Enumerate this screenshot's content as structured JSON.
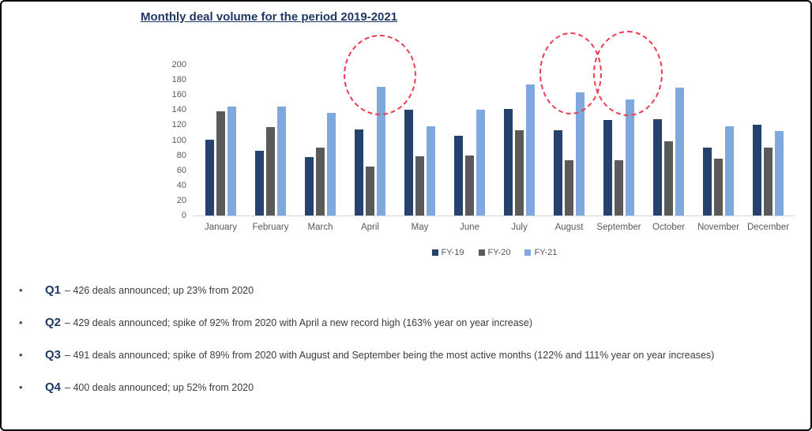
{
  "title": "Monthly deal volume for the period 2019-2021",
  "chart_data": {
    "type": "bar",
    "title": "Monthly deal volume for the period 2019-2021",
    "categories": [
      "January",
      "February",
      "March",
      "April",
      "May",
      "June",
      "July",
      "August",
      "September",
      "October",
      "November",
      "December"
    ],
    "series": [
      {
        "name": "FY-19",
        "color": "#24426B",
        "values": [
          100,
          86,
          78,
          114,
          140,
          106,
          141,
          113,
          127,
          128,
          90,
          120
        ]
      },
      {
        "name": "FY-20",
        "color": "#5A5A5A",
        "values": [
          138,
          117,
          90,
          65,
          79,
          80,
          113,
          73,
          73,
          98,
          75,
          90
        ]
      },
      {
        "name": "FY-21",
        "color": "#7FA9DC",
        "values": [
          145,
          145,
          136,
          171,
          118,
          140,
          174,
          163,
          154,
          170,
          118,
          112
        ]
      }
    ],
    "xlabel": "",
    "ylabel": "",
    "ylim": [
      0,
      200
    ],
    "ytick_step": 20,
    "grid": false,
    "legend_position": "bottom",
    "annotations": [
      {
        "target": "April FY-21 bar",
        "shape": "red dashed circle"
      },
      {
        "target": "August FY-21 bar",
        "shape": "red dashed circle"
      },
      {
        "target": "September FY-21 bar",
        "shape": "red dashed circle"
      }
    ]
  },
  "bullets": [
    {
      "label": "Q1",
      "text": "– 426 deals announced; up 23% from 2020"
    },
    {
      "label": "Q2",
      "text": "– 429 deals announced; spike of 92% from 2020 with April a new record high (163% year on year increase)"
    },
    {
      "label": "Q3",
      "text": "– 491 deals announced; spike of 89% from 2020 with August and September being the most active months (122% and 111% year on year increases)"
    },
    {
      "label": "Q4",
      "text": "– 400 deals announced; up 52% from 2020"
    }
  ],
  "colors": {
    "title": "#1F3864",
    "axis_text": "#595959",
    "highlight_circle": "#EE3B4F",
    "bullet_marker": "#2E4D76",
    "body_text": "#3B3B3B"
  },
  "bullet_glyph": "•"
}
